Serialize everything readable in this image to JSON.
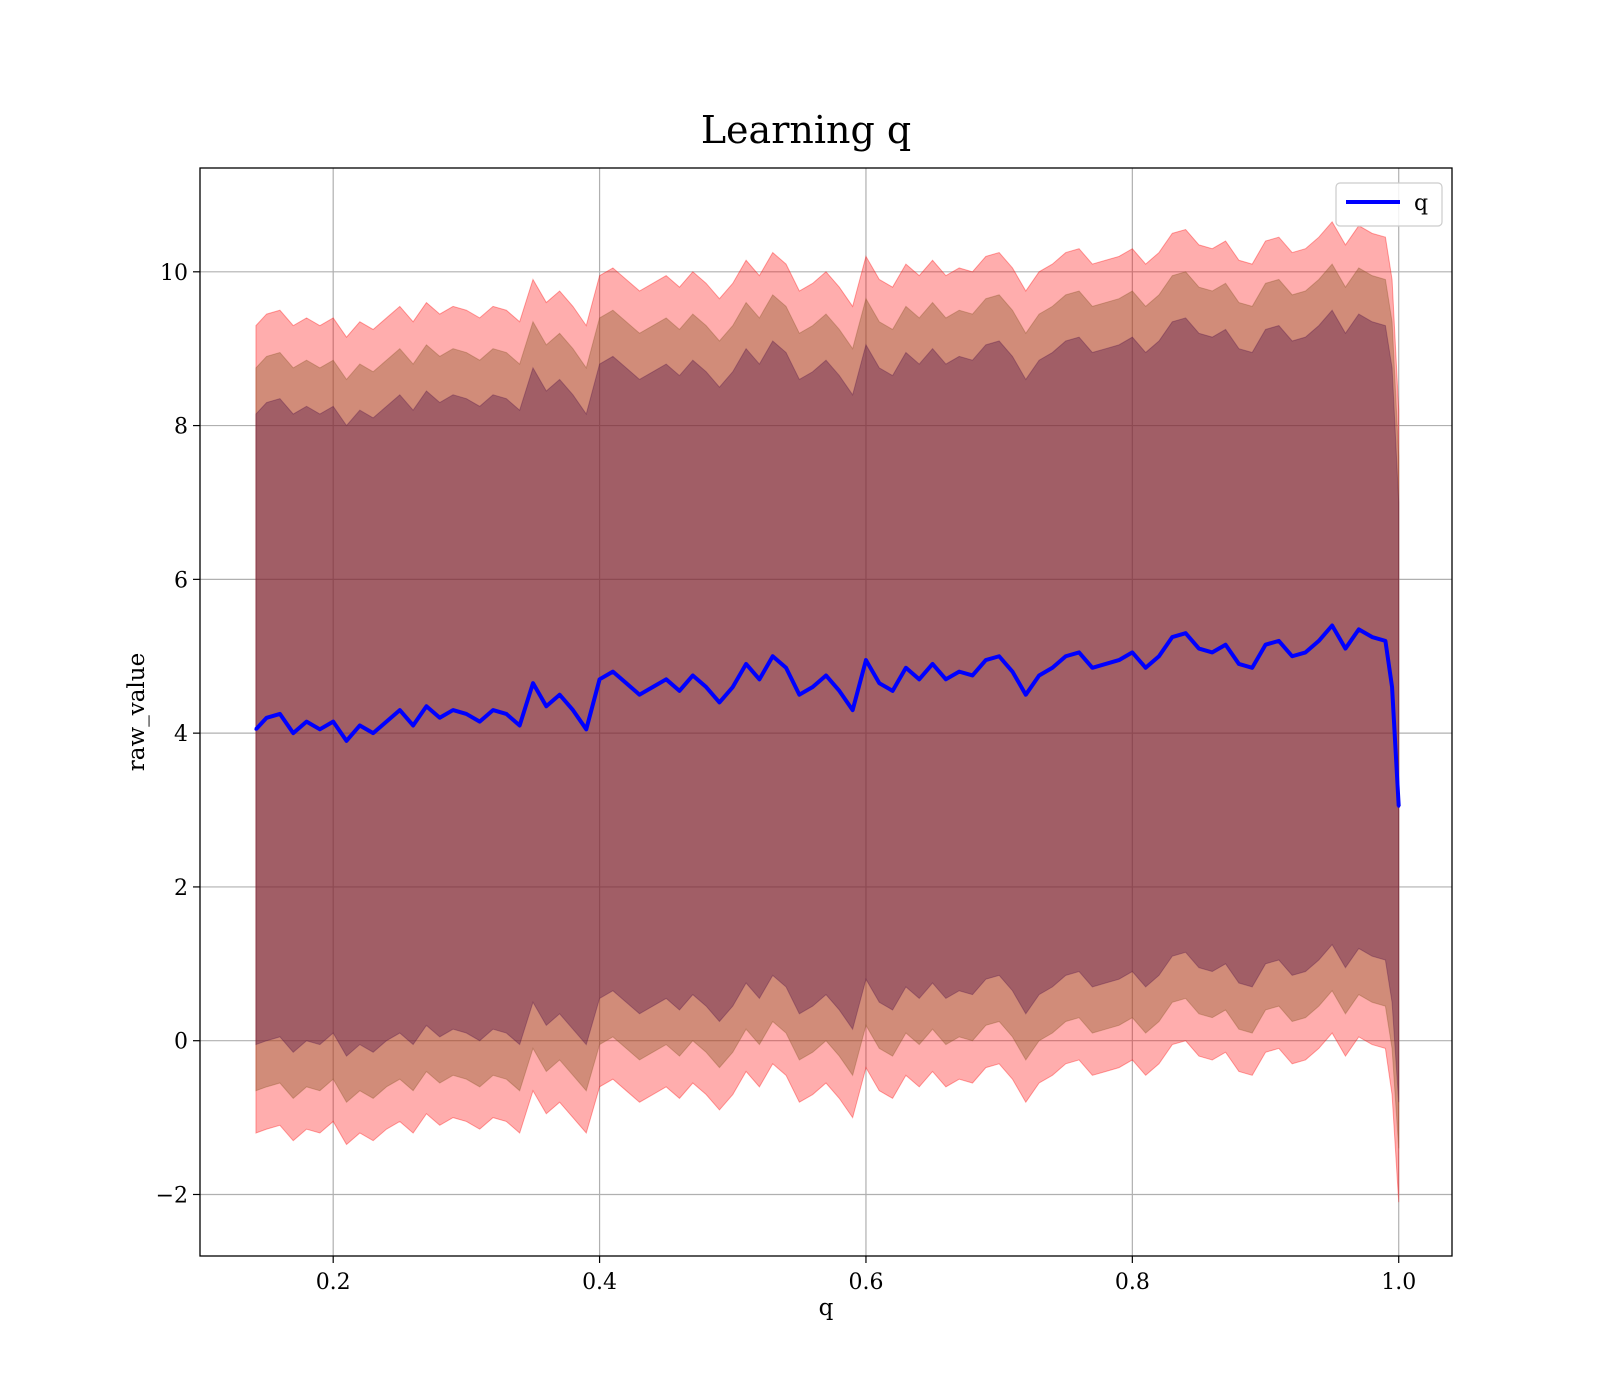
{
  "chart_data": {
    "type": "line",
    "title": "Learning q",
    "xlabel": "q",
    "ylabel": "raw_value",
    "xlim": [
      0.1,
      1.04
    ],
    "ylim": [
      -2.8,
      11.35
    ],
    "grid": true,
    "legend_position": "top-right",
    "xticks": [
      0.2,
      0.4,
      0.6,
      0.8,
      1.0
    ],
    "xtick_labels": [
      "0.2",
      "0.4",
      "0.6",
      "0.8",
      "1.0"
    ],
    "yticks": [
      -2,
      0,
      2,
      4,
      6,
      8,
      10
    ],
    "ytick_labels": [
      "−2",
      "0",
      "2",
      "4",
      "6",
      "8",
      "10"
    ],
    "line_color": "#0000ff",
    "band_colors": [
      "#ff0000",
      "#8b5a2b",
      "#5a1a4a"
    ],
    "series": [
      {
        "name": "q",
        "x": [
          0.142,
          0.15,
          0.16,
          0.17,
          0.18,
          0.19,
          0.2,
          0.21,
          0.22,
          0.23,
          0.24,
          0.25,
          0.26,
          0.27,
          0.28,
          0.29,
          0.3,
          0.31,
          0.32,
          0.33,
          0.34,
          0.35,
          0.36,
          0.37,
          0.38,
          0.39,
          0.4,
          0.41,
          0.42,
          0.43,
          0.44,
          0.45,
          0.46,
          0.47,
          0.48,
          0.49,
          0.5,
          0.51,
          0.52,
          0.53,
          0.54,
          0.55,
          0.56,
          0.57,
          0.58,
          0.59,
          0.6,
          0.61,
          0.62,
          0.63,
          0.64,
          0.65,
          0.66,
          0.67,
          0.68,
          0.69,
          0.7,
          0.71,
          0.72,
          0.73,
          0.74,
          0.75,
          0.76,
          0.77,
          0.78,
          0.79,
          0.8,
          0.81,
          0.82,
          0.83,
          0.84,
          0.85,
          0.86,
          0.87,
          0.88,
          0.89,
          0.9,
          0.91,
          0.92,
          0.93,
          0.94,
          0.95,
          0.96,
          0.97,
          0.98,
          0.99,
          0.995,
          1.0
        ],
        "values": [
          4.05,
          4.2,
          4.25,
          4.0,
          4.15,
          4.05,
          4.15,
          3.9,
          4.1,
          4.0,
          4.15,
          4.3,
          4.1,
          4.35,
          4.2,
          4.3,
          4.25,
          4.15,
          4.3,
          4.25,
          4.1,
          4.65,
          4.35,
          4.5,
          4.3,
          4.05,
          4.7,
          4.8,
          4.65,
          4.5,
          4.6,
          4.7,
          4.55,
          4.75,
          4.6,
          4.4,
          4.6,
          4.9,
          4.7,
          5.0,
          4.85,
          4.5,
          4.6,
          4.75,
          4.55,
          4.3,
          4.95,
          4.65,
          4.55,
          4.85,
          4.7,
          4.9,
          4.7,
          4.8,
          4.75,
          4.95,
          5.0,
          4.8,
          4.5,
          4.75,
          4.85,
          5.0,
          5.05,
          4.85,
          4.9,
          4.95,
          5.05,
          4.85,
          5.0,
          5.25,
          5.3,
          5.1,
          5.05,
          5.15,
          4.9,
          4.85,
          5.15,
          5.2,
          5.0,
          5.05,
          5.2,
          5.4,
          5.1,
          5.35,
          5.25,
          5.2,
          4.6,
          3.05
        ],
        "bands": [
          {
            "lower": [
              -1.2,
              -1.15,
              -1.1,
              -1.3,
              -1.15,
              -1.2,
              -1.05,
              -1.35,
              -1.2,
              -1.3,
              -1.15,
              -1.05,
              -1.2,
              -0.95,
              -1.1,
              -1.0,
              -1.05,
              -1.15,
              -1.0,
              -1.05,
              -1.2,
              -0.65,
              -0.95,
              -0.8,
              -1.0,
              -1.2,
              -0.6,
              -0.5,
              -0.65,
              -0.8,
              -0.7,
              -0.6,
              -0.75,
              -0.55,
              -0.7,
              -0.9,
              -0.7,
              -0.4,
              -0.6,
              -0.3,
              -0.45,
              -0.8,
              -0.7,
              -0.55,
              -0.75,
              -1.0,
              -0.35,
              -0.65,
              -0.75,
              -0.45,
              -0.6,
              -0.4,
              -0.6,
              -0.5,
              -0.55,
              -0.35,
              -0.3,
              -0.5,
              -0.8,
              -0.55,
              -0.45,
              -0.3,
              -0.25,
              -0.45,
              -0.4,
              -0.35,
              -0.25,
              -0.45,
              -0.3,
              -0.05,
              0.0,
              -0.2,
              -0.25,
              -0.15,
              -0.4,
              -0.45,
              -0.15,
              -0.1,
              -0.3,
              -0.25,
              -0.1,
              0.1,
              -0.2,
              0.05,
              -0.05,
              -0.1,
              -0.7,
              -2.1
            ],
            "upper": [
              9.3,
              9.45,
              9.5,
              9.3,
              9.4,
              9.3,
              9.4,
              9.15,
              9.35,
              9.25,
              9.4,
              9.55,
              9.35,
              9.6,
              9.45,
              9.55,
              9.5,
              9.4,
              9.55,
              9.5,
              9.35,
              9.9,
              9.6,
              9.75,
              9.55,
              9.3,
              9.95,
              10.05,
              9.9,
              9.75,
              9.85,
              9.95,
              9.8,
              10.0,
              9.85,
              9.65,
              9.85,
              10.15,
              9.95,
              10.25,
              10.1,
              9.75,
              9.85,
              10.0,
              9.8,
              9.55,
              10.2,
              9.9,
              9.8,
              10.1,
              9.95,
              10.15,
              9.95,
              10.05,
              10.0,
              10.2,
              10.25,
              10.05,
              9.75,
              10.0,
              10.1,
              10.25,
              10.3,
              10.1,
              10.15,
              10.2,
              10.3,
              10.1,
              10.25,
              10.5,
              10.55,
              10.35,
              10.3,
              10.4,
              10.15,
              10.1,
              10.4,
              10.45,
              10.25,
              10.3,
              10.45,
              10.65,
              10.35,
              10.6,
              10.5,
              10.45,
              9.9,
              8.2
            ]
          },
          {
            "lower": [
              -0.65,
              -0.6,
              -0.55,
              -0.75,
              -0.6,
              -0.65,
              -0.5,
              -0.8,
              -0.65,
              -0.75,
              -0.6,
              -0.5,
              -0.65,
              -0.4,
              -0.55,
              -0.45,
              -0.5,
              -0.6,
              -0.45,
              -0.5,
              -0.65,
              -0.1,
              -0.4,
              -0.25,
              -0.45,
              -0.65,
              -0.05,
              0.05,
              -0.1,
              -0.25,
              -0.15,
              -0.05,
              -0.2,
              0.0,
              -0.15,
              -0.35,
              -0.15,
              0.15,
              -0.05,
              0.25,
              0.1,
              -0.25,
              -0.15,
              0.0,
              -0.2,
              -0.45,
              0.2,
              -0.1,
              -0.2,
              0.1,
              -0.05,
              0.15,
              -0.05,
              0.05,
              0.0,
              0.2,
              0.25,
              0.05,
              -0.25,
              0.0,
              0.1,
              0.25,
              0.3,
              0.1,
              0.15,
              0.2,
              0.3,
              0.1,
              0.25,
              0.5,
              0.55,
              0.35,
              0.3,
              0.4,
              0.15,
              0.1,
              0.4,
              0.45,
              0.25,
              0.3,
              0.45,
              0.65,
              0.35,
              0.6,
              0.5,
              0.45,
              -0.1,
              -1.4
            ],
            "upper": [
              8.75,
              8.9,
              8.95,
              8.75,
              8.85,
              8.75,
              8.85,
              8.6,
              8.8,
              8.7,
              8.85,
              9.0,
              8.8,
              9.05,
              8.9,
              9.0,
              8.95,
              8.85,
              9.0,
              8.95,
              8.8,
              9.35,
              9.05,
              9.2,
              9.0,
              8.75,
              9.4,
              9.5,
              9.35,
              9.2,
              9.3,
              9.4,
              9.25,
              9.45,
              9.3,
              9.1,
              9.3,
              9.6,
              9.4,
              9.7,
              9.55,
              9.2,
              9.3,
              9.45,
              9.25,
              9.0,
              9.65,
              9.35,
              9.25,
              9.55,
              9.4,
              9.6,
              9.4,
              9.5,
              9.45,
              9.65,
              9.7,
              9.5,
              9.2,
              9.45,
              9.55,
              9.7,
              9.75,
              9.55,
              9.6,
              9.65,
              9.75,
              9.55,
              9.7,
              9.95,
              10.0,
              9.8,
              9.75,
              9.85,
              9.6,
              9.55,
              9.85,
              9.9,
              9.7,
              9.75,
              9.9,
              10.1,
              9.8,
              10.05,
              9.95,
              9.9,
              9.35,
              7.6
            ]
          },
          {
            "lower": [
              -0.05,
              0.0,
              0.05,
              -0.15,
              0.0,
              -0.05,
              0.1,
              -0.2,
              -0.05,
              -0.15,
              0.0,
              0.1,
              -0.05,
              0.2,
              0.05,
              0.15,
              0.1,
              0.0,
              0.15,
              0.1,
              -0.05,
              0.5,
              0.2,
              0.35,
              0.15,
              -0.05,
              0.55,
              0.65,
              0.5,
              0.35,
              0.45,
              0.55,
              0.4,
              0.6,
              0.45,
              0.25,
              0.45,
              0.75,
              0.55,
              0.85,
              0.7,
              0.35,
              0.45,
              0.6,
              0.4,
              0.15,
              0.8,
              0.5,
              0.4,
              0.7,
              0.55,
              0.75,
              0.55,
              0.65,
              0.6,
              0.8,
              0.85,
              0.65,
              0.35,
              0.6,
              0.7,
              0.85,
              0.9,
              0.7,
              0.75,
              0.8,
              0.9,
              0.7,
              0.85,
              1.1,
              1.15,
              0.95,
              0.9,
              1.0,
              0.75,
              0.7,
              1.0,
              1.05,
              0.85,
              0.9,
              1.05,
              1.25,
              0.95,
              1.2,
              1.1,
              1.05,
              0.5,
              -0.8
            ],
            "upper": [
              8.15,
              8.3,
              8.35,
              8.15,
              8.25,
              8.15,
              8.25,
              8.0,
              8.2,
              8.1,
              8.25,
              8.4,
              8.2,
              8.45,
              8.3,
              8.4,
              8.35,
              8.25,
              8.4,
              8.35,
              8.2,
              8.75,
              8.45,
              8.6,
              8.4,
              8.15,
              8.8,
              8.9,
              8.75,
              8.6,
              8.7,
              8.8,
              8.65,
              8.85,
              8.7,
              8.5,
              8.7,
              9.0,
              8.8,
              9.1,
              8.95,
              8.6,
              8.7,
              8.85,
              8.65,
              8.4,
              9.05,
              8.75,
              8.65,
              8.95,
              8.8,
              9.0,
              8.8,
              8.9,
              8.85,
              9.05,
              9.1,
              8.9,
              8.6,
              8.85,
              8.95,
              9.1,
              9.15,
              8.95,
              9.0,
              9.05,
              9.15,
              8.95,
              9.1,
              9.35,
              9.4,
              9.2,
              9.15,
              9.25,
              9.0,
              8.95,
              9.25,
              9.3,
              9.1,
              9.15,
              9.3,
              9.5,
              9.2,
              9.45,
              9.35,
              9.3,
              8.75,
              7.0
            ]
          }
        ]
      }
    ]
  }
}
